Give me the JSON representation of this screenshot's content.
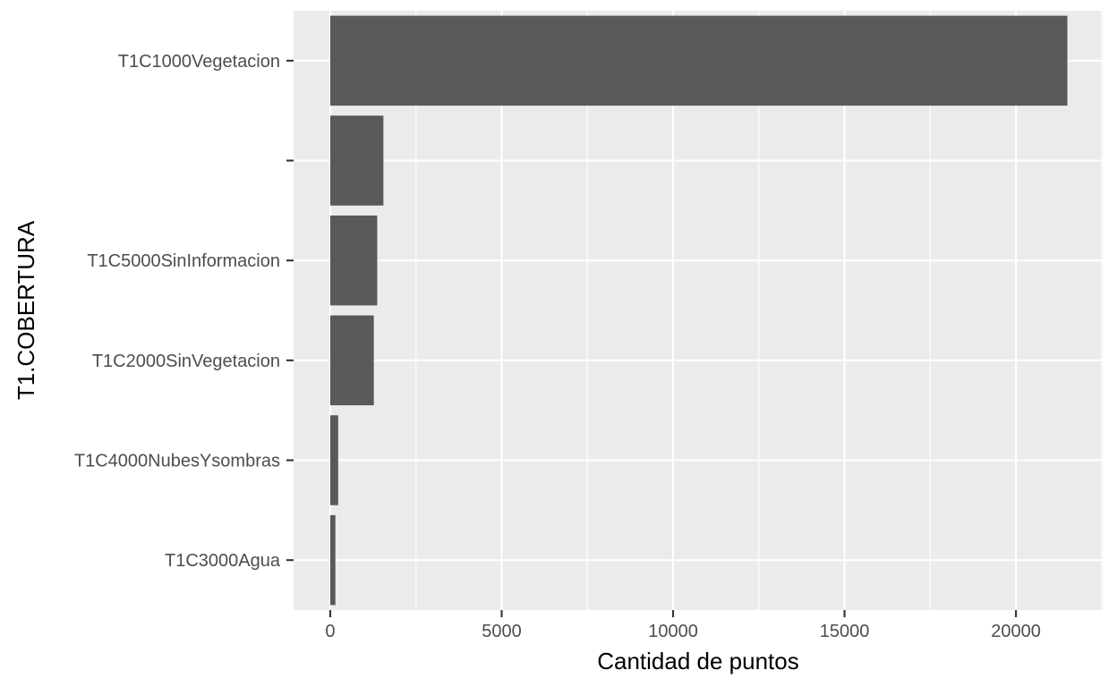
{
  "chart_data": {
    "type": "bar",
    "orientation": "horizontal",
    "xlabel": "Cantidad de puntos",
    "ylabel": "T1.COBERTURA",
    "categories": [
      "T1C1000Vegetacion",
      "",
      "T1C5000SinInformacion",
      "T1C2000SinVegetacion",
      "T1C4000NubesYsombras",
      "T1C3000Agua"
    ],
    "values": [
      21500,
      1550,
      1370,
      1270,
      230,
      150
    ],
    "xlim": [
      -1070,
      22530
    ],
    "xticks": [
      0,
      5000,
      10000,
      15000,
      20000
    ],
    "xtick_labels": [
      "0",
      "5000",
      "10000",
      "15000",
      "20000"
    ],
    "grid": true,
    "colors": {
      "panel": "#ebebeb",
      "grid": "#ffffff",
      "bar": "#595959",
      "tick_text": "#4d4d4d",
      "title_text": "#000000"
    }
  }
}
